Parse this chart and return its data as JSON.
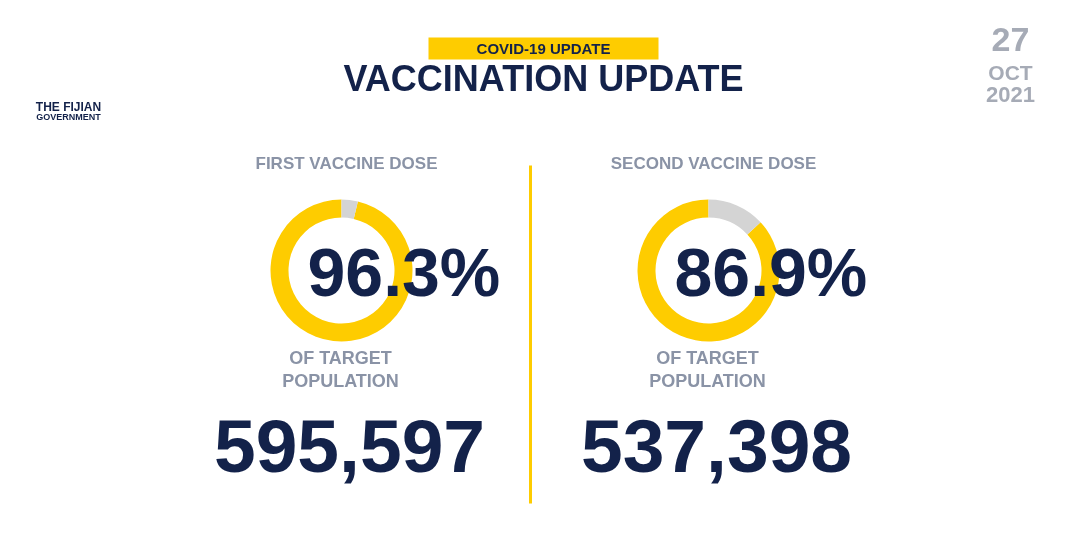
{
  "chart_data": [
    {
      "type": "other",
      "title": "VACCINATION UPDATE",
      "annotations": [
        "COVID-19 UPDATE",
        "THE FIJIAN",
        "GOVERNMENT",
        "27",
        "OCT",
        "2021"
      ]
    },
    {
      "type": "donut",
      "title": "FIRST VACCINE DOSE",
      "categories": [
        null,
        null
      ],
      "values": [
        96.3,
        3.7
      ],
      "colors": [
        "#fecc00",
        "#d4d4d4"
      ],
      "value_labels": [
        "96.3%",
        null
      ],
      "annotations": [
        "OF TARGET POPULATION",
        "595,597"
      ]
    },
    {
      "type": "donut",
      "title": "SECOND VACCINE DOSE",
      "categories": [
        null,
        null
      ],
      "values": [
        86.9,
        13.1
      ],
      "colors": [
        "#fecc00",
        "#d4d4d4"
      ],
      "value_labels": [
        "86.9%",
        null
      ],
      "annotations": [
        "OF TARGET POPULATION",
        "537,398"
      ]
    }
  ]
}
